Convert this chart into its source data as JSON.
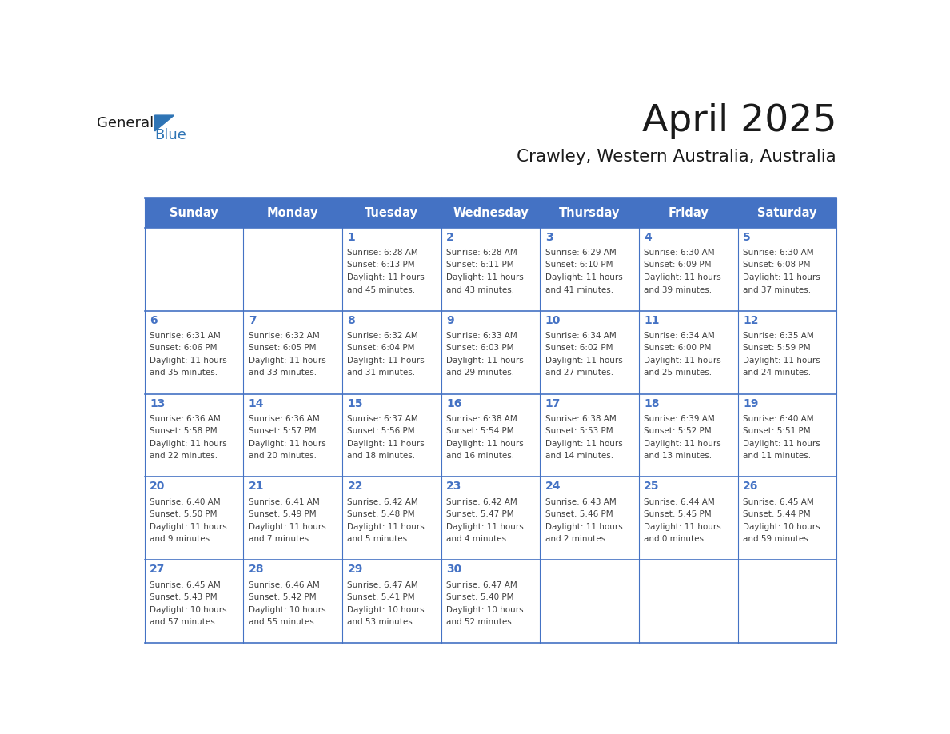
{
  "title": "April 2025",
  "subtitle": "Crawley, Western Australia, Australia",
  "days_of_week": [
    "Sunday",
    "Monday",
    "Tuesday",
    "Wednesday",
    "Thursday",
    "Friday",
    "Saturday"
  ],
  "header_bg": "#4472C4",
  "header_text": "#FFFFFF",
  "cell_bg_light": "#FFFFFF",
  "cell_bg_dark": "#F0F0F0",
  "separator_color": "#4472C4",
  "day_number_color": "#4472C4",
  "text_color": "#404040",
  "title_color": "#1a1a1a",
  "logo_general_color": "#1a1a1a",
  "logo_blue_color": "#2E74B5",
  "calendar_data": {
    "week1": {
      "Sunday": null,
      "Monday": null,
      "Tuesday": {
        "day": 1,
        "sunrise": "6:28 AM",
        "sunset": "6:13 PM",
        "daylight_hours": 11,
        "daylight_minutes": 45
      },
      "Wednesday": {
        "day": 2,
        "sunrise": "6:28 AM",
        "sunset": "6:11 PM",
        "daylight_hours": 11,
        "daylight_minutes": 43
      },
      "Thursday": {
        "day": 3,
        "sunrise": "6:29 AM",
        "sunset": "6:10 PM",
        "daylight_hours": 11,
        "daylight_minutes": 41
      },
      "Friday": {
        "day": 4,
        "sunrise": "6:30 AM",
        "sunset": "6:09 PM",
        "daylight_hours": 11,
        "daylight_minutes": 39
      },
      "Saturday": {
        "day": 5,
        "sunrise": "6:30 AM",
        "sunset": "6:08 PM",
        "daylight_hours": 11,
        "daylight_minutes": 37
      }
    },
    "week2": {
      "Sunday": {
        "day": 6,
        "sunrise": "6:31 AM",
        "sunset": "6:06 PM",
        "daylight_hours": 11,
        "daylight_minutes": 35
      },
      "Monday": {
        "day": 7,
        "sunrise": "6:32 AM",
        "sunset": "6:05 PM",
        "daylight_hours": 11,
        "daylight_minutes": 33
      },
      "Tuesday": {
        "day": 8,
        "sunrise": "6:32 AM",
        "sunset": "6:04 PM",
        "daylight_hours": 11,
        "daylight_minutes": 31
      },
      "Wednesday": {
        "day": 9,
        "sunrise": "6:33 AM",
        "sunset": "6:03 PM",
        "daylight_hours": 11,
        "daylight_minutes": 29
      },
      "Thursday": {
        "day": 10,
        "sunrise": "6:34 AM",
        "sunset": "6:02 PM",
        "daylight_hours": 11,
        "daylight_minutes": 27
      },
      "Friday": {
        "day": 11,
        "sunrise": "6:34 AM",
        "sunset": "6:00 PM",
        "daylight_hours": 11,
        "daylight_minutes": 25
      },
      "Saturday": {
        "day": 12,
        "sunrise": "6:35 AM",
        "sunset": "5:59 PM",
        "daylight_hours": 11,
        "daylight_minutes": 24
      }
    },
    "week3": {
      "Sunday": {
        "day": 13,
        "sunrise": "6:36 AM",
        "sunset": "5:58 PM",
        "daylight_hours": 11,
        "daylight_minutes": 22
      },
      "Monday": {
        "day": 14,
        "sunrise": "6:36 AM",
        "sunset": "5:57 PM",
        "daylight_hours": 11,
        "daylight_minutes": 20
      },
      "Tuesday": {
        "day": 15,
        "sunrise": "6:37 AM",
        "sunset": "5:56 PM",
        "daylight_hours": 11,
        "daylight_minutes": 18
      },
      "Wednesday": {
        "day": 16,
        "sunrise": "6:38 AM",
        "sunset": "5:54 PM",
        "daylight_hours": 11,
        "daylight_minutes": 16
      },
      "Thursday": {
        "day": 17,
        "sunrise": "6:38 AM",
        "sunset": "5:53 PM",
        "daylight_hours": 11,
        "daylight_minutes": 14
      },
      "Friday": {
        "day": 18,
        "sunrise": "6:39 AM",
        "sunset": "5:52 PM",
        "daylight_hours": 11,
        "daylight_minutes": 13
      },
      "Saturday": {
        "day": 19,
        "sunrise": "6:40 AM",
        "sunset": "5:51 PM",
        "daylight_hours": 11,
        "daylight_minutes": 11
      }
    },
    "week4": {
      "Sunday": {
        "day": 20,
        "sunrise": "6:40 AM",
        "sunset": "5:50 PM",
        "daylight_hours": 11,
        "daylight_minutes": 9
      },
      "Monday": {
        "day": 21,
        "sunrise": "6:41 AM",
        "sunset": "5:49 PM",
        "daylight_hours": 11,
        "daylight_minutes": 7
      },
      "Tuesday": {
        "day": 22,
        "sunrise": "6:42 AM",
        "sunset": "5:48 PM",
        "daylight_hours": 11,
        "daylight_minutes": 5
      },
      "Wednesday": {
        "day": 23,
        "sunrise": "6:42 AM",
        "sunset": "5:47 PM",
        "daylight_hours": 11,
        "daylight_minutes": 4
      },
      "Thursday": {
        "day": 24,
        "sunrise": "6:43 AM",
        "sunset": "5:46 PM",
        "daylight_hours": 11,
        "daylight_minutes": 2
      },
      "Friday": {
        "day": 25,
        "sunrise": "6:44 AM",
        "sunset": "5:45 PM",
        "daylight_hours": 11,
        "daylight_minutes": 0
      },
      "Saturday": {
        "day": 26,
        "sunrise": "6:45 AM",
        "sunset": "5:44 PM",
        "daylight_hours": 10,
        "daylight_minutes": 59
      }
    },
    "week5": {
      "Sunday": {
        "day": 27,
        "sunrise": "6:45 AM",
        "sunset": "5:43 PM",
        "daylight_hours": 10,
        "daylight_minutes": 57
      },
      "Monday": {
        "day": 28,
        "sunrise": "6:46 AM",
        "sunset": "5:42 PM",
        "daylight_hours": 10,
        "daylight_minutes": 55
      },
      "Tuesday": {
        "day": 29,
        "sunrise": "6:47 AM",
        "sunset": "5:41 PM",
        "daylight_hours": 10,
        "daylight_minutes": 53
      },
      "Wednesday": {
        "day": 30,
        "sunrise": "6:47 AM",
        "sunset": "5:40 PM",
        "daylight_hours": 10,
        "daylight_minutes": 52
      },
      "Thursday": null,
      "Friday": null,
      "Saturday": null
    }
  }
}
